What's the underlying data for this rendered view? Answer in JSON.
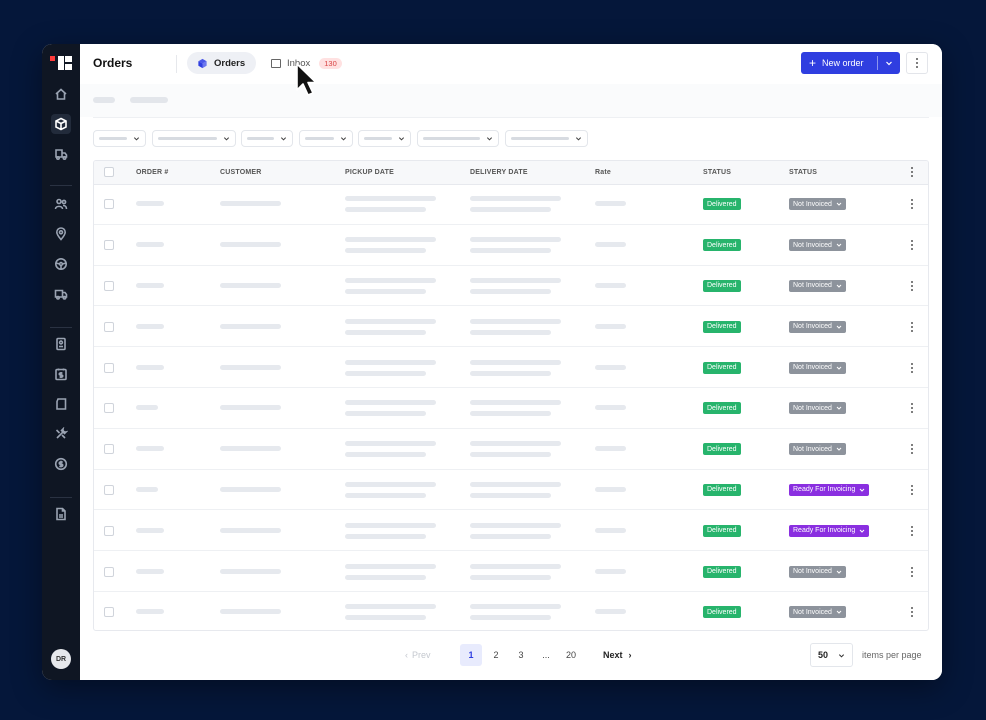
{
  "header": {
    "title": "Orders",
    "tabs": [
      {
        "label": "Orders",
        "icon": "cube-icon",
        "active": true
      },
      {
        "label": "Inbox",
        "icon": "inbox-icon",
        "badge": "130"
      }
    ],
    "new_order_label": "New order"
  },
  "sidebar": {
    "items": [
      {
        "icon": "home-icon"
      },
      {
        "icon": "cube-icon",
        "active": true
      },
      {
        "icon": "delivery-icon"
      },
      {
        "icon": "users-icon"
      },
      {
        "icon": "location-icon"
      },
      {
        "icon": "steering-wheel-icon"
      },
      {
        "icon": "truck-icon"
      },
      {
        "icon": "id-card-icon"
      },
      {
        "icon": "invoice-dollar-icon"
      },
      {
        "icon": "trailer-icon"
      },
      {
        "icon": "tools-icon"
      },
      {
        "icon": "dollar-circle-icon"
      },
      {
        "icon": "document-icon"
      }
    ],
    "avatar_initials": "DR"
  },
  "table": {
    "columns": [
      "ORDER #",
      "CUSTOMER",
      "PICKUP DATE",
      "DELIVERY DATE",
      "Rate",
      "STATUS",
      "STATUS"
    ],
    "rows": [
      {
        "delivery_status": "Delivered",
        "invoice_status": "Not Invoiced"
      },
      {
        "delivery_status": "Delivered",
        "invoice_status": "Not Invoiced"
      },
      {
        "delivery_status": "Delivered",
        "invoice_status": "Not Invoiced"
      },
      {
        "delivery_status": "Delivered",
        "invoice_status": "Not Invoiced"
      },
      {
        "delivery_status": "Delivered",
        "invoice_status": "Not Invoiced"
      },
      {
        "delivery_status": "Delivered",
        "invoice_status": "Not Invoiced"
      },
      {
        "delivery_status": "Delivered",
        "invoice_status": "Not Invoiced"
      },
      {
        "delivery_status": "Delivered",
        "invoice_status": "Ready For Invoicing"
      },
      {
        "delivery_status": "Delivered",
        "invoice_status": "Ready For Invoicing"
      },
      {
        "delivery_status": "Delivered",
        "invoice_status": "Not Invoiced"
      },
      {
        "delivery_status": "Delivered",
        "invoice_status": "Not Invoiced"
      }
    ]
  },
  "pagination": {
    "prev_label": "Prev",
    "pages": [
      "1",
      "2",
      "3",
      "...",
      "20"
    ],
    "current_page": "1",
    "next_label": "Next",
    "per_page_value": "50",
    "per_page_label": "items per page"
  },
  "colors": {
    "primary": "#2f3ee0",
    "delivered": "#27b46c",
    "not_invoiced": "#8d939c",
    "ready_for_invoicing": "#8a2fe0",
    "badge_bg": "#ffe1e1",
    "badge_text": "#d84545"
  }
}
